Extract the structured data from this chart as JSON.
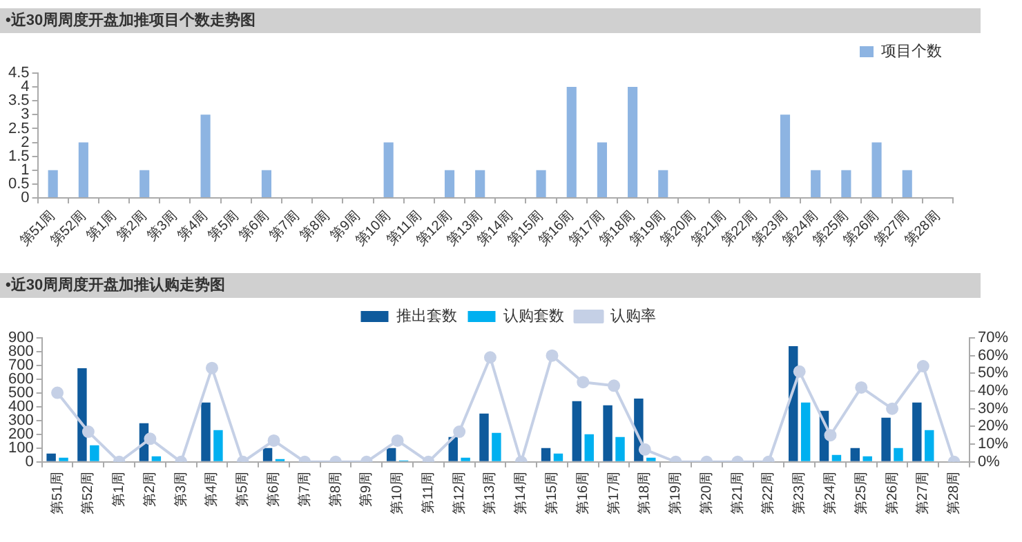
{
  "chart_data": [
    {
      "type": "bar",
      "title": "•近30周周度开盘加推项目个数走势图",
      "categories": [
        "第51周",
        "第52周",
        "第1周",
        "第2周",
        "第3周",
        "第4周",
        "第5周",
        "第6周",
        "第7周",
        "第8周",
        "第9周",
        "第10周",
        "第11周",
        "第12周",
        "第13周",
        "第14周",
        "第15周",
        "第16周",
        "第17周",
        "第18周",
        "第19周",
        "第20周",
        "第21周",
        "第22周",
        "第23周",
        "第24周",
        "第25周",
        "第26周",
        "第27周",
        "第28周"
      ],
      "series": [
        {
          "name": "项目个数",
          "color": "#8db4e2",
          "values": [
            1,
            2,
            0,
            1,
            0,
            3,
            0,
            1,
            0,
            0,
            0,
            2,
            0,
            1,
            1,
            0,
            1,
            4,
            2,
            4,
            1,
            0,
            0,
            0,
            3,
            1,
            1,
            2,
            1,
            0
          ]
        }
      ],
      "ylim": [
        0,
        4.5
      ],
      "yticks": [
        0,
        0.5,
        1,
        1.5,
        2,
        2.5,
        3,
        3.5,
        4,
        4.5
      ],
      "grid": false,
      "legend": "top right"
    },
    {
      "type": "bar",
      "title": "•近30周周度开盘加推认购走势图",
      "categories": [
        "第51周",
        "第52周",
        "第1周",
        "第2周",
        "第3周",
        "第4周",
        "第5周",
        "第6周",
        "第7周",
        "第8周",
        "第9周",
        "第10周",
        "第11周",
        "第12周",
        "第13周",
        "第14周",
        "第15周",
        "第16周",
        "第17周",
        "第18周",
        "第19周",
        "第20周",
        "第21周",
        "第22周",
        "第23周",
        "第24周",
        "第25周",
        "第26周",
        "第27周",
        "第28周"
      ],
      "series": [
        {
          "name": "推出套数",
          "color": "#0e5a9c",
          "values": [
            60,
            680,
            0,
            280,
            0,
            430,
            0,
            100,
            0,
            0,
            0,
            100,
            0,
            180,
            350,
            0,
            100,
            440,
            410,
            460,
            0,
            0,
            0,
            0,
            840,
            370,
            100,
            320,
            430,
            0
          ]
        },
        {
          "name": "认购套数",
          "color": "#00b0f0",
          "values": [
            30,
            120,
            0,
            40,
            0,
            230,
            0,
            20,
            0,
            0,
            0,
            10,
            0,
            30,
            210,
            0,
            60,
            200,
            180,
            30,
            0,
            0,
            0,
            0,
            430,
            50,
            40,
            100,
            230,
            0
          ]
        },
        {
          "name": "认购率",
          "type": "line",
          "axis": "y2",
          "color": "#c5d0e6",
          "values": [
            39,
            17,
            0,
            13,
            0,
            53,
            0,
            12,
            0,
            0,
            0,
            12,
            0,
            17,
            59,
            0,
            60,
            45,
            43,
            7,
            0,
            0,
            0,
            0,
            51,
            15,
            42,
            30,
            54,
            0
          ]
        }
      ],
      "ylim": [
        0,
        900
      ],
      "yticks": [
        0,
        100,
        200,
        300,
        400,
        500,
        600,
        700,
        800,
        900
      ],
      "y2lim": [
        0,
        70
      ],
      "y2ticks": [
        {
          "value": 0,
          "label": "0%"
        },
        {
          "value": 10,
          "label": "10%"
        },
        {
          "value": 20,
          "label": "20%"
        },
        {
          "value": 30,
          "label": "30%"
        },
        {
          "value": 40,
          "label": "40%"
        },
        {
          "value": 50,
          "label": "50%"
        },
        {
          "value": 60,
          "label": "60%"
        },
        {
          "value": 70,
          "label": "70%"
        }
      ],
      "grid": false,
      "legend": "top",
      "marker": "circle",
      "line_style": "solid"
    }
  ]
}
